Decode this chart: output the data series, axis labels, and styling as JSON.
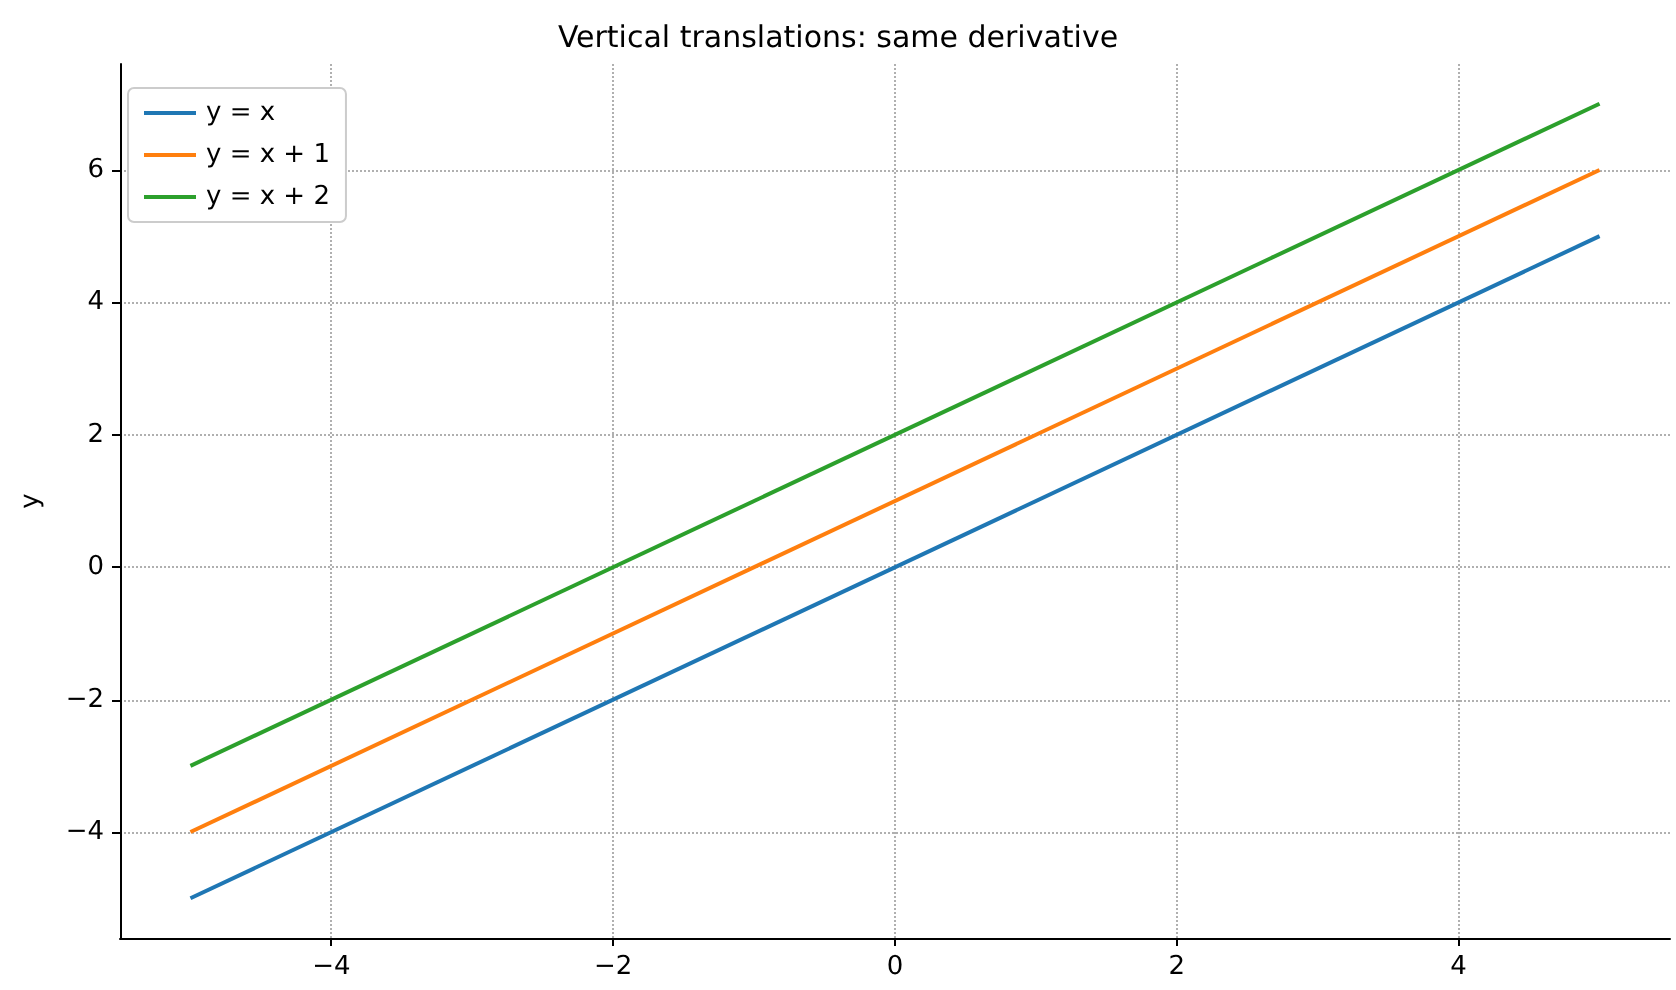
{
  "chart_data": {
    "type": "line",
    "title": "Vertical translations: same derivative",
    "ylabel": "y",
    "x": [
      -5,
      5
    ],
    "series": [
      {
        "name": "y = x",
        "color": "#1f77b4",
        "values": [
          -5,
          5
        ]
      },
      {
        "name": "y = x + 1",
        "color": "#ff7f0e",
        "values": [
          -4,
          6
        ]
      },
      {
        "name": "y = x + 2",
        "color": "#2ca02c",
        "values": [
          -3,
          7
        ]
      }
    ],
    "xlim": [
      -5.5,
      5.5
    ],
    "ylim": [
      -5.6,
      7.6
    ],
    "xticks": [
      {
        "value": -4,
        "label": "−4"
      },
      {
        "value": -2,
        "label": "−2"
      },
      0,
      2,
      4
    ],
    "yticks": [
      {
        "value": -4,
        "label": "−4"
      },
      {
        "value": -2,
        "label": "−2"
      },
      0,
      2,
      4,
      6
    ],
    "grid": true,
    "legend": "top left",
    "marker": "none",
    "line_style": "solid"
  }
}
